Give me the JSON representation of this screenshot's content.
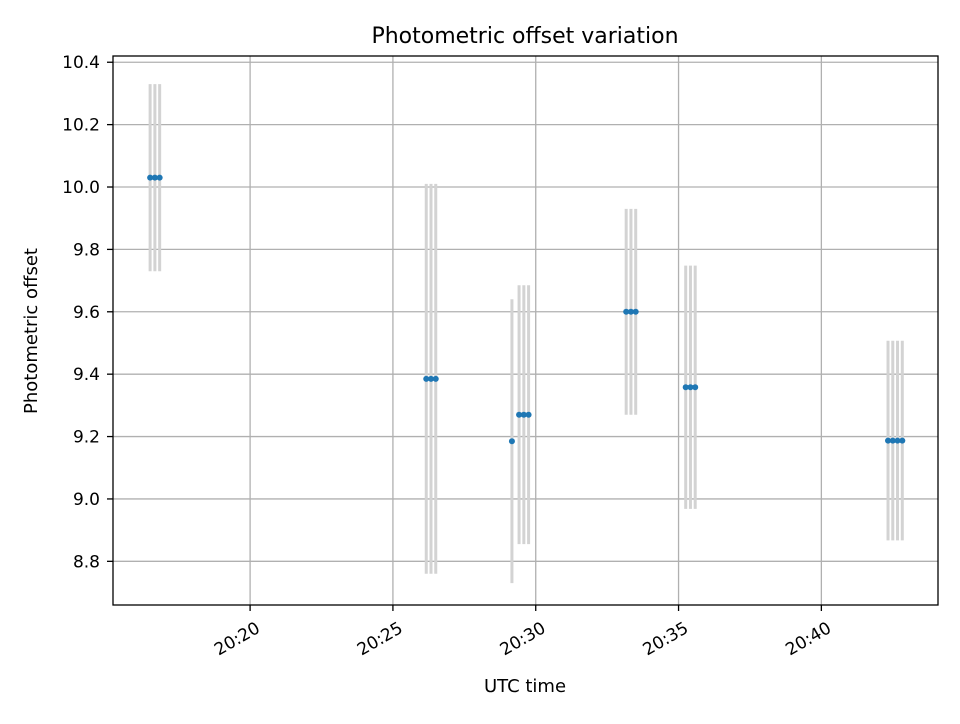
{
  "chart_data": {
    "type": "scatter",
    "title": "Photometric offset variation",
    "xlabel": "UTC time",
    "ylabel": "Photometric offset",
    "x_axis": {
      "kind": "time",
      "range": [
        "20:15:12",
        "20:44:05"
      ],
      "ticks": [
        "20:20",
        "20:25",
        "20:30",
        "20:35",
        "20:40"
      ]
    },
    "y_axis": {
      "range": [
        8.66,
        10.42
      ],
      "ticks": [
        "8.8",
        "9.0",
        "9.2",
        "9.4",
        "9.6",
        "9.8",
        "10.0",
        "10.2",
        "10.4"
      ]
    },
    "grid": true,
    "series": [
      {
        "marker": "point",
        "error_bars": "vertical",
        "points": [
          {
            "x": "20:16:30",
            "y": 10.03,
            "err": 0.3
          },
          {
            "x": "20:16:40",
            "y": 10.03,
            "err": 0.3
          },
          {
            "x": "20:16:50",
            "y": 10.03,
            "err": 0.3
          },
          {
            "x": "20:26:10",
            "y": 9.385,
            "err": 0.625
          },
          {
            "x": "20:26:20",
            "y": 9.385,
            "err": 0.625
          },
          {
            "x": "20:26:30",
            "y": 9.385,
            "err": 0.625
          },
          {
            "x": "20:29:10",
            "y": 9.185,
            "err": 0.455
          },
          {
            "x": "20:29:25",
            "y": 9.27,
            "err": 0.415
          },
          {
            "x": "20:29:35",
            "y": 9.27,
            "err": 0.415
          },
          {
            "x": "20:29:45",
            "y": 9.27,
            "err": 0.415
          },
          {
            "x": "20:33:10",
            "y": 9.6,
            "err": 0.33
          },
          {
            "x": "20:33:20",
            "y": 9.6,
            "err": 0.33
          },
          {
            "x": "20:33:30",
            "y": 9.6,
            "err": 0.33
          },
          {
            "x": "20:35:15",
            "y": 9.358,
            "err": 0.39
          },
          {
            "x": "20:35:25",
            "y": 9.358,
            "err": 0.39
          },
          {
            "x": "20:35:35",
            "y": 9.358,
            "err": 0.39
          },
          {
            "x": "20:42:20",
            "y": 9.187,
            "err": 0.32
          },
          {
            "x": "20:42:30",
            "y": 9.187,
            "err": 0.32
          },
          {
            "x": "20:42:40",
            "y": 9.187,
            "err": 0.32
          },
          {
            "x": "20:42:50",
            "y": 9.187,
            "err": 0.32
          }
        ]
      }
    ]
  },
  "colors": {
    "marker": "#1f77b4",
    "error_bar": "#d3d3d3",
    "grid": "#b0b0b0",
    "axes": "#000000"
  }
}
